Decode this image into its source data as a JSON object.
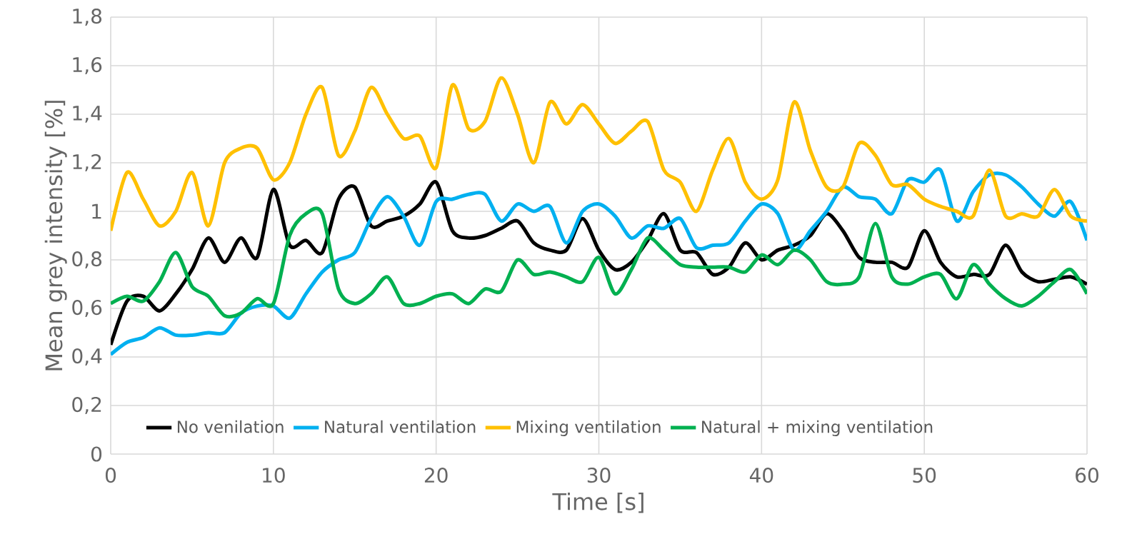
{
  "chart_data": {
    "type": "line",
    "xlabel": "Time [s]",
    "ylabel": "Mean grey intensity [%]",
    "x": [
      0,
      1,
      2,
      3,
      4,
      5,
      6,
      7,
      8,
      9,
      10,
      11,
      12,
      13,
      14,
      15,
      16,
      17,
      18,
      19,
      20,
      21,
      22,
      23,
      24,
      25,
      26,
      27,
      28,
      29,
      30,
      31,
      32,
      33,
      34,
      35,
      36,
      37,
      38,
      39,
      40,
      41,
      42,
      43,
      44,
      45,
      46,
      47,
      48,
      49,
      50,
      51,
      52,
      53,
      54,
      55,
      56,
      57,
      58,
      59,
      60
    ],
    "xlim": [
      0,
      60
    ],
    "xticks": [
      0,
      10,
      20,
      30,
      40,
      50,
      60
    ],
    "ylim": [
      0,
      1.8
    ],
    "yticks": [
      0,
      {
        "value": 0.2,
        "label": "0,2"
      },
      {
        "value": 0.4,
        "label": "0,4"
      },
      {
        "value": 0.6,
        "label": "0,6"
      },
      {
        "value": 0.8,
        "label": "0,8"
      },
      1,
      {
        "value": 1.2,
        "label": "1,2"
      },
      {
        "value": 1.4,
        "label": "1,4"
      },
      {
        "value": 1.6,
        "label": "1,6"
      },
      {
        "value": 1.8,
        "label": "1,8"
      }
    ],
    "grid": true,
    "legend": "bottom",
    "marker": "none",
    "line_style": "solid",
    "series": [
      {
        "name": "No venilation",
        "color": "#000000",
        "values": [
          0.45,
          0.63,
          0.65,
          0.59,
          0.66,
          0.76,
          0.89,
          0.79,
          0.89,
          0.81,
          1.09,
          0.86,
          0.88,
          0.83,
          1.05,
          1.1,
          0.94,
          0.96,
          0.98,
          1.03,
          1.12,
          0.92,
          0.89,
          0.9,
          0.93,
          0.96,
          0.87,
          0.84,
          0.84,
          0.97,
          0.84,
          0.76,
          0.79,
          0.88,
          0.99,
          0.84,
          0.83,
          0.74,
          0.77,
          0.87,
          0.8,
          0.84,
          0.86,
          0.9,
          0.99,
          0.92,
          0.81,
          0.79,
          0.79,
          0.77,
          0.92,
          0.79,
          0.73,
          0.74,
          0.74,
          0.86,
          0.75,
          0.71,
          0.72,
          0.73,
          0.7
        ]
      },
      {
        "name": "Natural ventilation",
        "color": "#00b0f0",
        "values": [
          0.41,
          0.46,
          0.48,
          0.52,
          0.49,
          0.49,
          0.5,
          0.5,
          0.58,
          0.61,
          0.61,
          0.56,
          0.66,
          0.75,
          0.8,
          0.83,
          0.97,
          1.06,
          0.98,
          0.86,
          1.04,
          1.05,
          1.07,
          1.07,
          0.96,
          1.03,
          1.0,
          1.02,
          0.87,
          1.0,
          1.03,
          0.98,
          0.89,
          0.94,
          0.93,
          0.97,
          0.85,
          0.86,
          0.87,
          0.96,
          1.03,
          0.99,
          0.84,
          0.92,
          1.0,
          1.1,
          1.06,
          1.05,
          0.99,
          1.13,
          1.12,
          1.17,
          0.96,
          1.08,
          1.15,
          1.15,
          1.1,
          1.03,
          0.98,
          1.04,
          0.88
        ]
      },
      {
        "name": "Mixing ventilation",
        "color": "#ffc000",
        "values": [
          0.92,
          1.16,
          1.05,
          0.94,
          1.0,
          1.16,
          0.94,
          1.2,
          1.26,
          1.26,
          1.13,
          1.2,
          1.4,
          1.51,
          1.23,
          1.33,
          1.51,
          1.4,
          1.3,
          1.31,
          1.18,
          1.52,
          1.34,
          1.37,
          1.55,
          1.4,
          1.2,
          1.45,
          1.36,
          1.44,
          1.36,
          1.28,
          1.33,
          1.37,
          1.17,
          1.12,
          1.0,
          1.17,
          1.3,
          1.12,
          1.05,
          1.13,
          1.45,
          1.25,
          1.1,
          1.1,
          1.28,
          1.23,
          1.11,
          1.11,
          1.05,
          1.02,
          1.0,
          0.98,
          1.17,
          0.98,
          0.99,
          0.98,
          1.09,
          0.98,
          0.96
        ]
      },
      {
        "name": "Natural + mixing ventilation",
        "color": "#00b050",
        "values": [
          0.62,
          0.65,
          0.63,
          0.71,
          0.83,
          0.69,
          0.65,
          0.57,
          0.58,
          0.64,
          0.62,
          0.9,
          0.99,
          0.99,
          0.68,
          0.62,
          0.66,
          0.73,
          0.62,
          0.62,
          0.65,
          0.66,
          0.62,
          0.68,
          0.67,
          0.8,
          0.74,
          0.75,
          0.73,
          0.71,
          0.81,
          0.66,
          0.76,
          0.89,
          0.84,
          0.78,
          0.77,
          0.77,
          0.77,
          0.75,
          0.82,
          0.78,
          0.84,
          0.8,
          0.71,
          0.7,
          0.73,
          0.95,
          0.73,
          0.7,
          0.73,
          0.74,
          0.64,
          0.78,
          0.7,
          0.64,
          0.61,
          0.65,
          0.71,
          0.76,
          0.66
        ]
      }
    ]
  }
}
